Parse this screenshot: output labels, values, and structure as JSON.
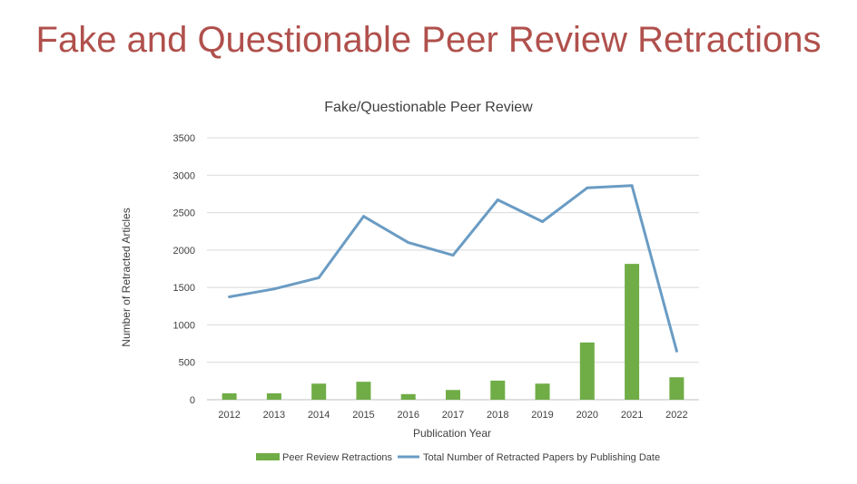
{
  "slide": {
    "title": "Fake and Questionable Peer Review Retractions"
  },
  "chart_data": {
    "type": "bar",
    "title": "Fake/Questionable Peer Review",
    "xlabel": "Publication Year",
    "ylabel": "Number of Retracted  Articles",
    "ylim": [
      0,
      3500
    ],
    "yticks": [
      0,
      500,
      1000,
      1500,
      2000,
      2500,
      3000,
      3500
    ],
    "categories": [
      "2012",
      "2013",
      "2014",
      "2015",
      "2016",
      "2017",
      "2018",
      "2019",
      "2020",
      "2021",
      "2022"
    ],
    "grid": true,
    "legend_position": "bottom",
    "series": [
      {
        "name": "Peer Review Retractions",
        "type": "bar",
        "color": "#70ad47",
        "values": [
          85,
          85,
          215,
          240,
          75,
          130,
          255,
          215,
          765,
          1815,
          300
        ]
      },
      {
        "name": "Total Number of Retracted Papers by Publishing Date",
        "type": "line",
        "color": "#6a9cc4",
        "values": [
          1375,
          1480,
          1630,
          2450,
          2100,
          1930,
          2670,
          2380,
          2830,
          2860,
          650
        ]
      }
    ]
  }
}
